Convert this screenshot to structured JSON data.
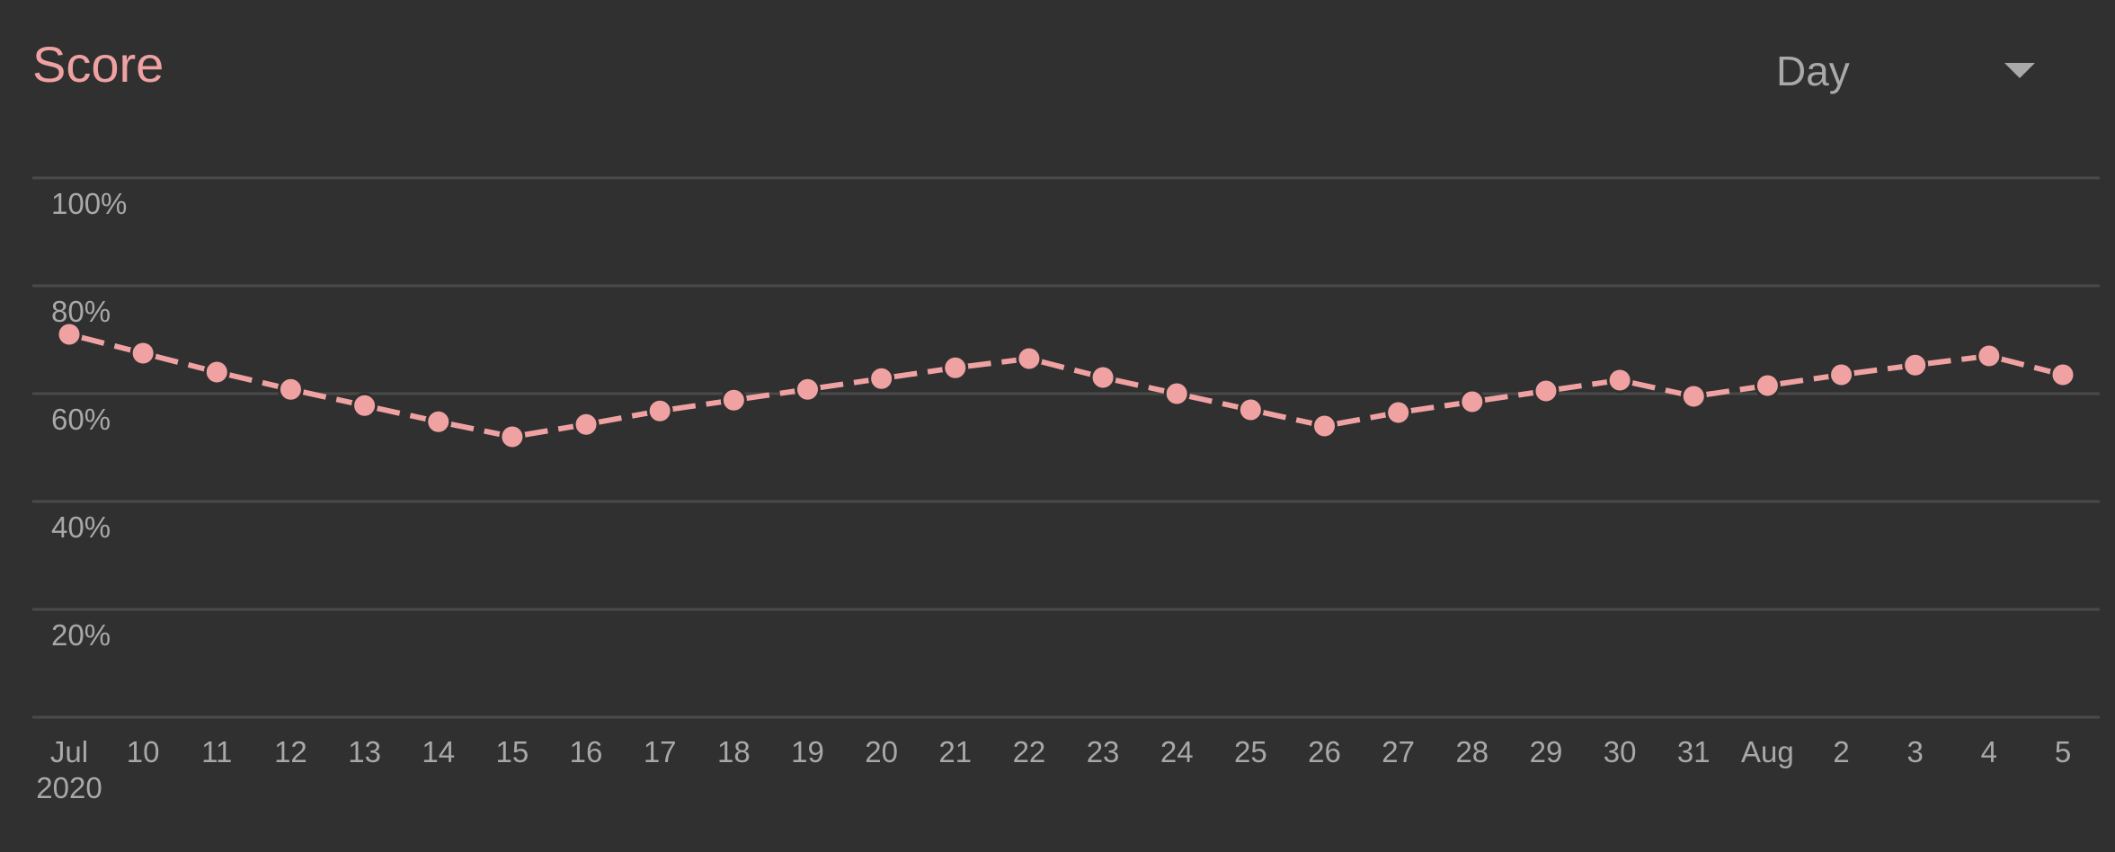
{
  "header": {
    "title": "Score",
    "period_label": "Day"
  },
  "colors": {
    "background": "#303030",
    "accent": "#f0a2a2",
    "grid": "#4a4a4a",
    "text_muted": "#a8a8a8"
  },
  "icons": {
    "dropdown": "triangle-down-icon"
  },
  "chart_data": {
    "type": "line",
    "title": "Score",
    "xlabel": "",
    "ylabel": "",
    "ylim": [
      0,
      100
    ],
    "y_ticks": [
      "100%",
      "80%",
      "60%",
      "40%",
      "20%"
    ],
    "categories": [
      "Jul",
      "10",
      "11",
      "12",
      "13",
      "14",
      "15",
      "16",
      "17",
      "18",
      "19",
      "20",
      "21",
      "22",
      "23",
      "24",
      "25",
      "26",
      "27",
      "28",
      "29",
      "30",
      "31",
      "Aug",
      "2",
      "3",
      "4",
      "5"
    ],
    "year_label": "2020",
    "series": [
      {
        "values": [
          71,
          67.5,
          64,
          60.8,
          57.8,
          54.8,
          52,
          54.3,
          56.8,
          58.8,
          60.8,
          62.8,
          64.8,
          66.5,
          63,
          60,
          57,
          54,
          56.5,
          58.5,
          60.5,
          62.5,
          59.5,
          61.5,
          63.5,
          65.3,
          67,
          63.5
        ]
      }
    ],
    "grid": true,
    "line_style": "dashed",
    "markers": true
  }
}
